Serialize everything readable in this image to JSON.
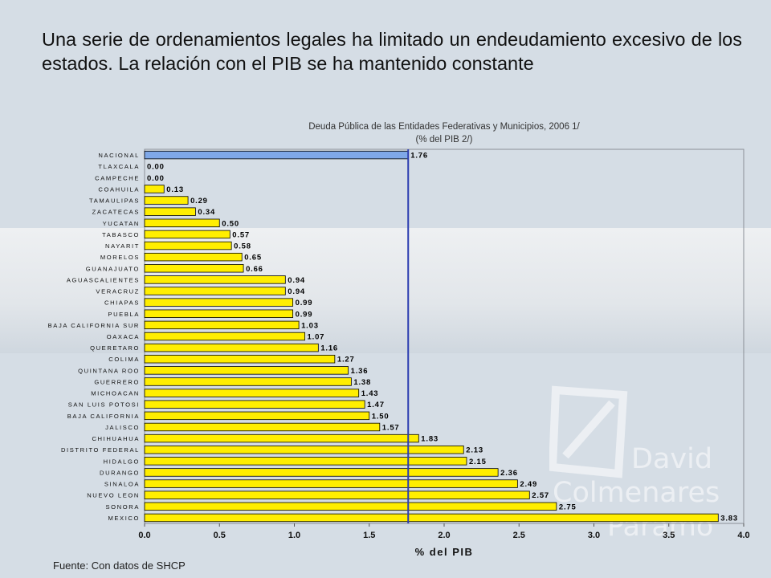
{
  "headline": "Una serie de ordenamientos legales  ha limitado un endeudamiento excesivo de los estados. La relación con el PIB se ha mantenido constante",
  "source": "Fuente: Con datos de SHCP",
  "watermark": {
    "line1": "David",
    "line2": "Colmenares",
    "line3": "Paramo"
  },
  "colors": {
    "bar": "#ffee00",
    "highlight_bar": "#7fa8e8",
    "reference_line": "#2c3db0",
    "background": "#d5dde5"
  },
  "chart_data": {
    "type": "bar",
    "orientation": "horizontal",
    "title": "Deuda Pública de las Entidades Federativas y Municipios, 2006  1/",
    "subtitle": "(% del PIB 2/)",
    "xlabel": "% del PIB",
    "ylabel": "",
    "xlim": [
      0,
      4
    ],
    "xticks": [
      "0.0",
      "0.5",
      "1.0",
      "1.5",
      "2.0",
      "2.5",
      "3.0",
      "3.5",
      "4.0"
    ],
    "reference_line": 1.76,
    "grid": false,
    "categories": [
      "NACIONAL",
      "TLAXCALA",
      "CAMPECHE",
      "COAHUILA",
      "TAMAULIPAS",
      "ZACATECAS",
      "YUCATAN",
      "TABASCO",
      "NAYARIT",
      "MORELOS",
      "GUANAJUATO",
      "AGUASCALIENTES",
      "VERACRUZ",
      "CHIAPAS",
      "PUEBLA",
      "BAJA CALIFORNIA SUR",
      "OAXACA",
      "QUERETARO",
      "COLIMA",
      "QUINTANA ROO",
      "GUERRERO",
      "MICHOACAN",
      "SAN LUIS POTOSI",
      "BAJA CALIFORNIA",
      "JALISCO",
      "CHIHUAHUA",
      "DISTRITO FEDERAL",
      "HIDALGO",
      "DURANGO",
      "SINALOA",
      "NUEVO LEON",
      "SONORA",
      "MEXICO"
    ],
    "values": [
      1.76,
      0.0,
      0.0,
      0.13,
      0.29,
      0.34,
      0.5,
      0.57,
      0.58,
      0.65,
      0.66,
      0.94,
      0.94,
      0.99,
      0.99,
      1.03,
      1.07,
      1.16,
      1.27,
      1.36,
      1.38,
      1.43,
      1.47,
      1.5,
      1.57,
      1.83,
      2.13,
      2.15,
      2.36,
      2.49,
      2.57,
      2.75,
      3.83
    ],
    "labels": [
      "1.76",
      "0.00",
      "0.00",
      "0.13",
      "0.29",
      "0.34",
      "0.50",
      "0.57",
      "0.58",
      "0.65",
      "0.66",
      "0.94",
      "0.94",
      "0.99",
      "0.99",
      "1.03",
      "1.07",
      "1.16",
      "1.27",
      "1.36",
      "1.38",
      "1.43",
      "1.47",
      "1.50",
      "1.57",
      "1.83",
      "2.13",
      "2.15",
      "2.36",
      "2.49",
      "2.57",
      "2.75",
      "3.83"
    ],
    "highlight_category": "NACIONAL"
  }
}
